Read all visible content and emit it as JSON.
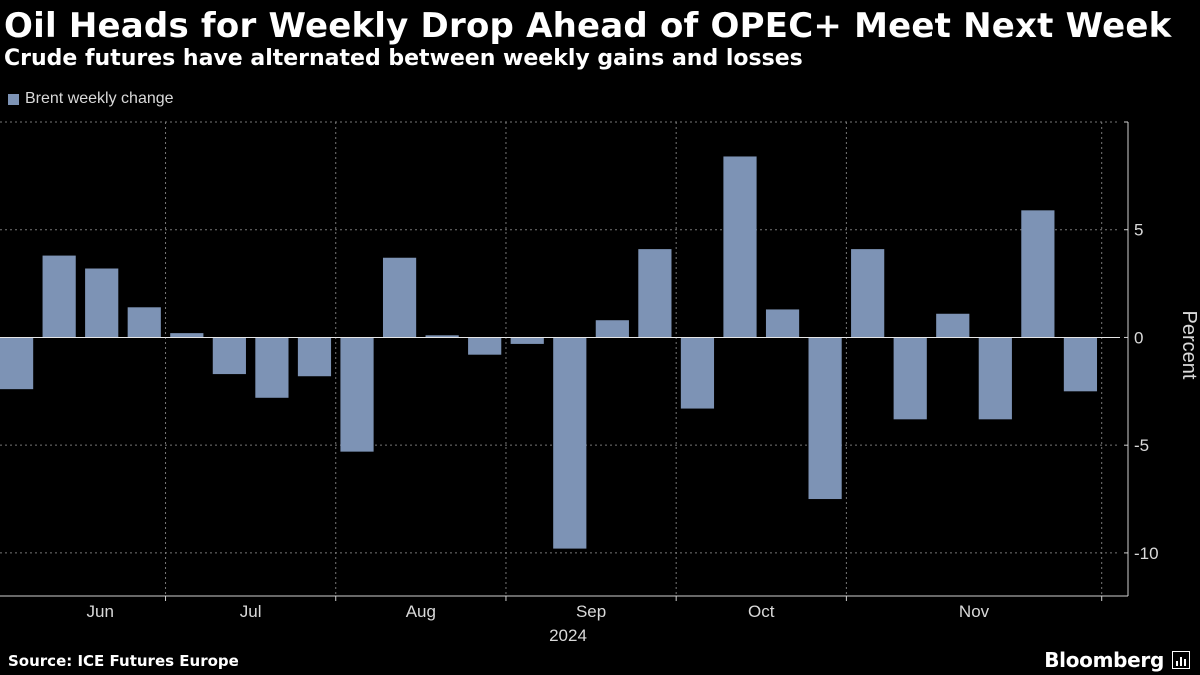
{
  "header": {
    "title": "Oil Heads for Weekly Drop Ahead of OPEC+ Meet Next Week",
    "subtitle": "Crude futures have alternated between weekly gains and losses"
  },
  "footer": {
    "source": "Source: ICE Futures Europe",
    "brand": "Bloomberg"
  },
  "colors": {
    "background": "#000000",
    "bar": "#7d93b5",
    "grid": "#777777",
    "axis": "#d0d0d0"
  },
  "chart_data": {
    "type": "bar",
    "title": "Oil Heads for Weekly Drop Ahead of OPEC+ Meet Next Week",
    "subtitle": "Crude futures have alternated between weekly gains and losses",
    "legend": [
      "Brent weekly change"
    ],
    "legend_position": "top-left",
    "xlabel": "2024",
    "ylabel": "Percent",
    "ylim": [
      -12,
      10
    ],
    "yticks": [
      -10,
      -5,
      0,
      5
    ],
    "ytick_labels": [
      "-10",
      "-5",
      "0",
      "5"
    ],
    "grid": true,
    "month_labels": [
      "Jun",
      "Jul",
      "Aug",
      "Sep",
      "Oct",
      "Nov"
    ],
    "month_starts": [
      0,
      4,
      8,
      12,
      16,
      20
    ],
    "series": [
      {
        "name": "Brent weekly change",
        "values": [
          -2.4,
          3.8,
          3.2,
          1.4,
          0.2,
          -1.7,
          -2.8,
          -1.8,
          -5.3,
          3.7,
          0.1,
          -0.8,
          -0.3,
          -9.8,
          0.8,
          4.1,
          -3.3,
          8.4,
          1.3,
          -7.5,
          4.1,
          -3.8,
          1.1,
          -3.8,
          5.9,
          -2.5
        ]
      }
    ]
  }
}
